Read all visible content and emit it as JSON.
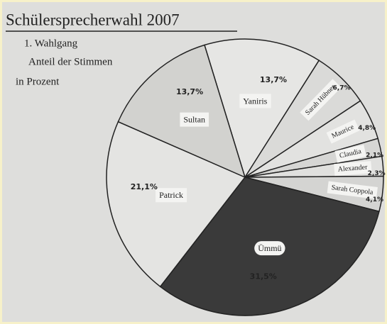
{
  "chart_data": {
    "type": "pie",
    "title": "Schülersprecherwahl 2007",
    "subtitle": [
      "1. Wahlgang",
      "Anteil der Stimmen",
      "in Prozent"
    ],
    "categories": [
      "Yaniris",
      "Sarah Hübner",
      "Maurice",
      "Claudia",
      "Alexander",
      "Sarah Coppola",
      "Ümmü",
      "Patrick",
      "Sultan"
    ],
    "values": [
      13.7,
      6.7,
      4.8,
      2.1,
      2.3,
      4.1,
      31.5,
      21.1,
      13.7
    ],
    "value_labels": [
      "13,7%",
      "6,7%",
      "4,8%",
      "2,1%",
      "2,3%",
      "4,1%",
      "31,5%",
      "21,1%",
      "13,7%"
    ],
    "colors": [
      "#e6e6e4",
      "#dadad8",
      "#e2e2e0",
      "#d6d6d4",
      "#e0e0de",
      "#d4d4d2",
      "#3a3a3a",
      "#e4e4e2",
      "#d2d2cf"
    ],
    "start_angle": -107
  }
}
